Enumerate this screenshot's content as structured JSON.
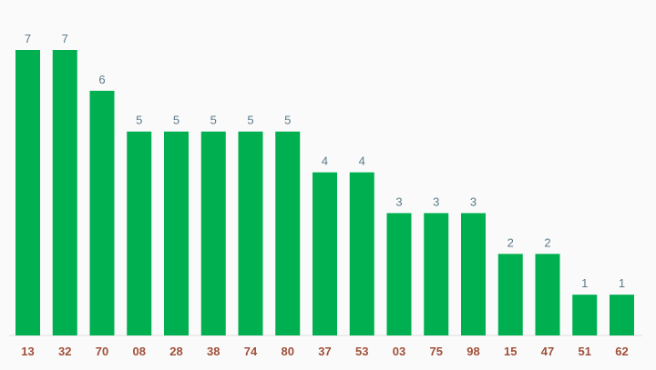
{
  "chart_data": {
    "type": "bar",
    "title": "",
    "xlabel": "",
    "ylabel": "",
    "categories": [
      "13",
      "32",
      "70",
      "08",
      "28",
      "38",
      "74",
      "80",
      "37",
      "53",
      "03",
      "75",
      "98",
      "15",
      "47",
      "51",
      "62"
    ],
    "values": [
      7,
      7,
      6,
      5,
      5,
      5,
      5,
      5,
      4,
      4,
      3,
      3,
      3,
      2,
      2,
      1,
      1
    ],
    "ylim": [
      0,
      7
    ],
    "grid": false,
    "legend": "none",
    "data_labels": true
  },
  "colors": {
    "bar": "#00b050",
    "value_label": "#5b7a8a",
    "category_label": "#a0503a",
    "background": "#fafafa"
  }
}
